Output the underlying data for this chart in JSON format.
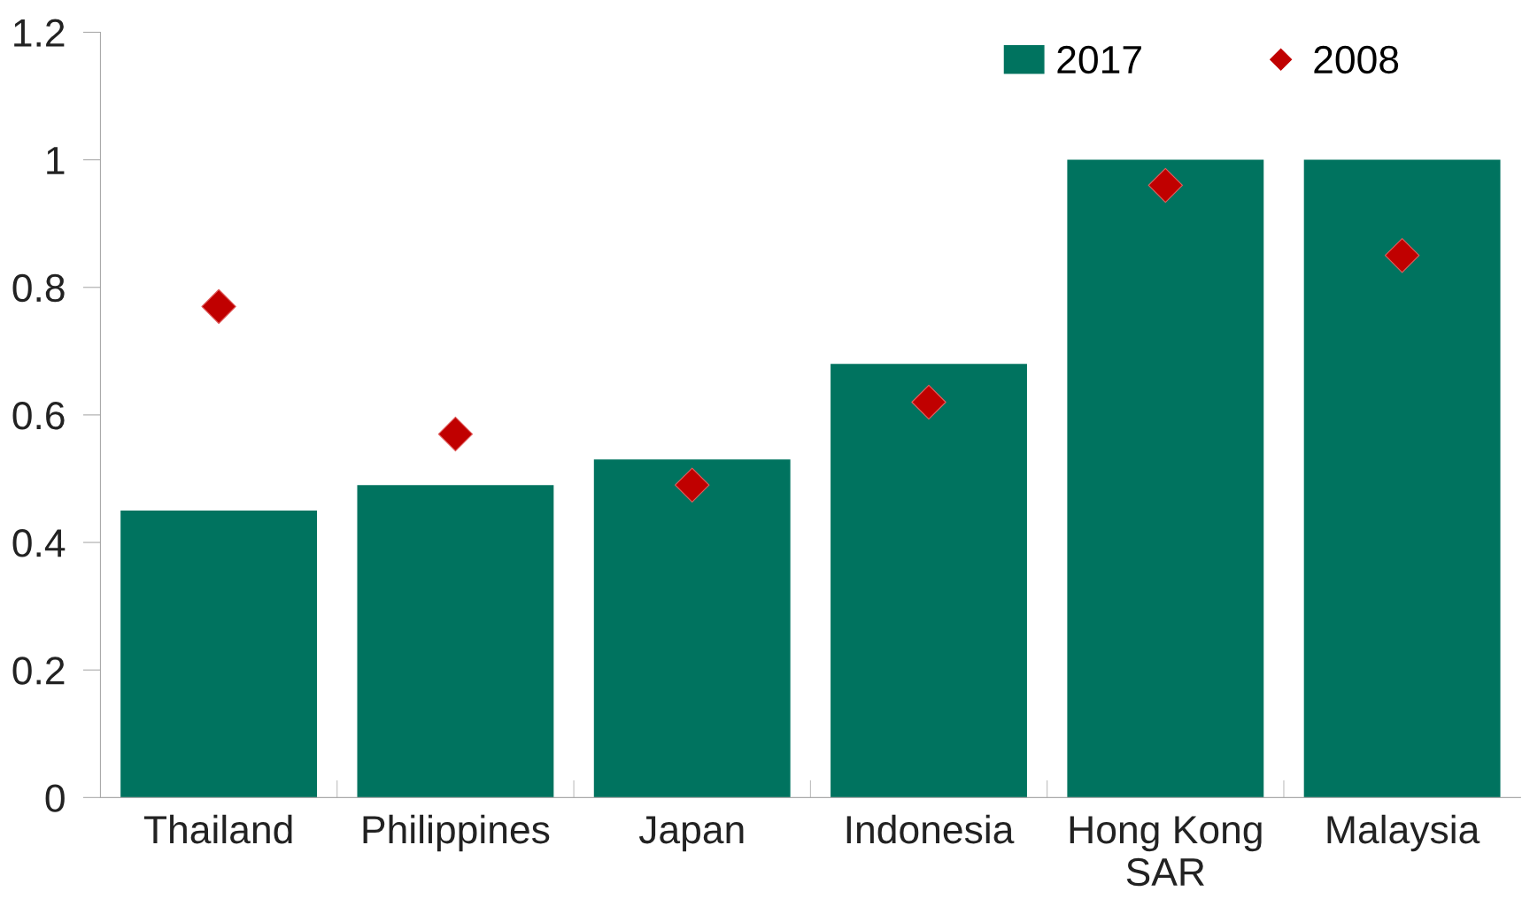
{
  "chart_data": {
    "type": "bar",
    "categories": [
      "Thailand",
      "Philippines",
      "Japan",
      "Indonesia",
      "Hong Kong\nSAR",
      "Malaysia"
    ],
    "series": [
      {
        "name": "2017",
        "color": "#00735f",
        "values": [
          0.45,
          0.49,
          0.53,
          0.68,
          1.0,
          1.0
        ]
      },
      {
        "name": "2008",
        "type": "scatter",
        "marker": "diamond",
        "color": "#c00000",
        "values": [
          0.77,
          0.57,
          0.49,
          0.62,
          0.96,
          0.85
        ]
      }
    ],
    "ylim": [
      0,
      1.2
    ],
    "yticks": [
      0,
      0.2,
      0.4,
      0.6,
      0.8,
      1,
      1.2
    ],
    "grid": false,
    "legend": "top right"
  }
}
